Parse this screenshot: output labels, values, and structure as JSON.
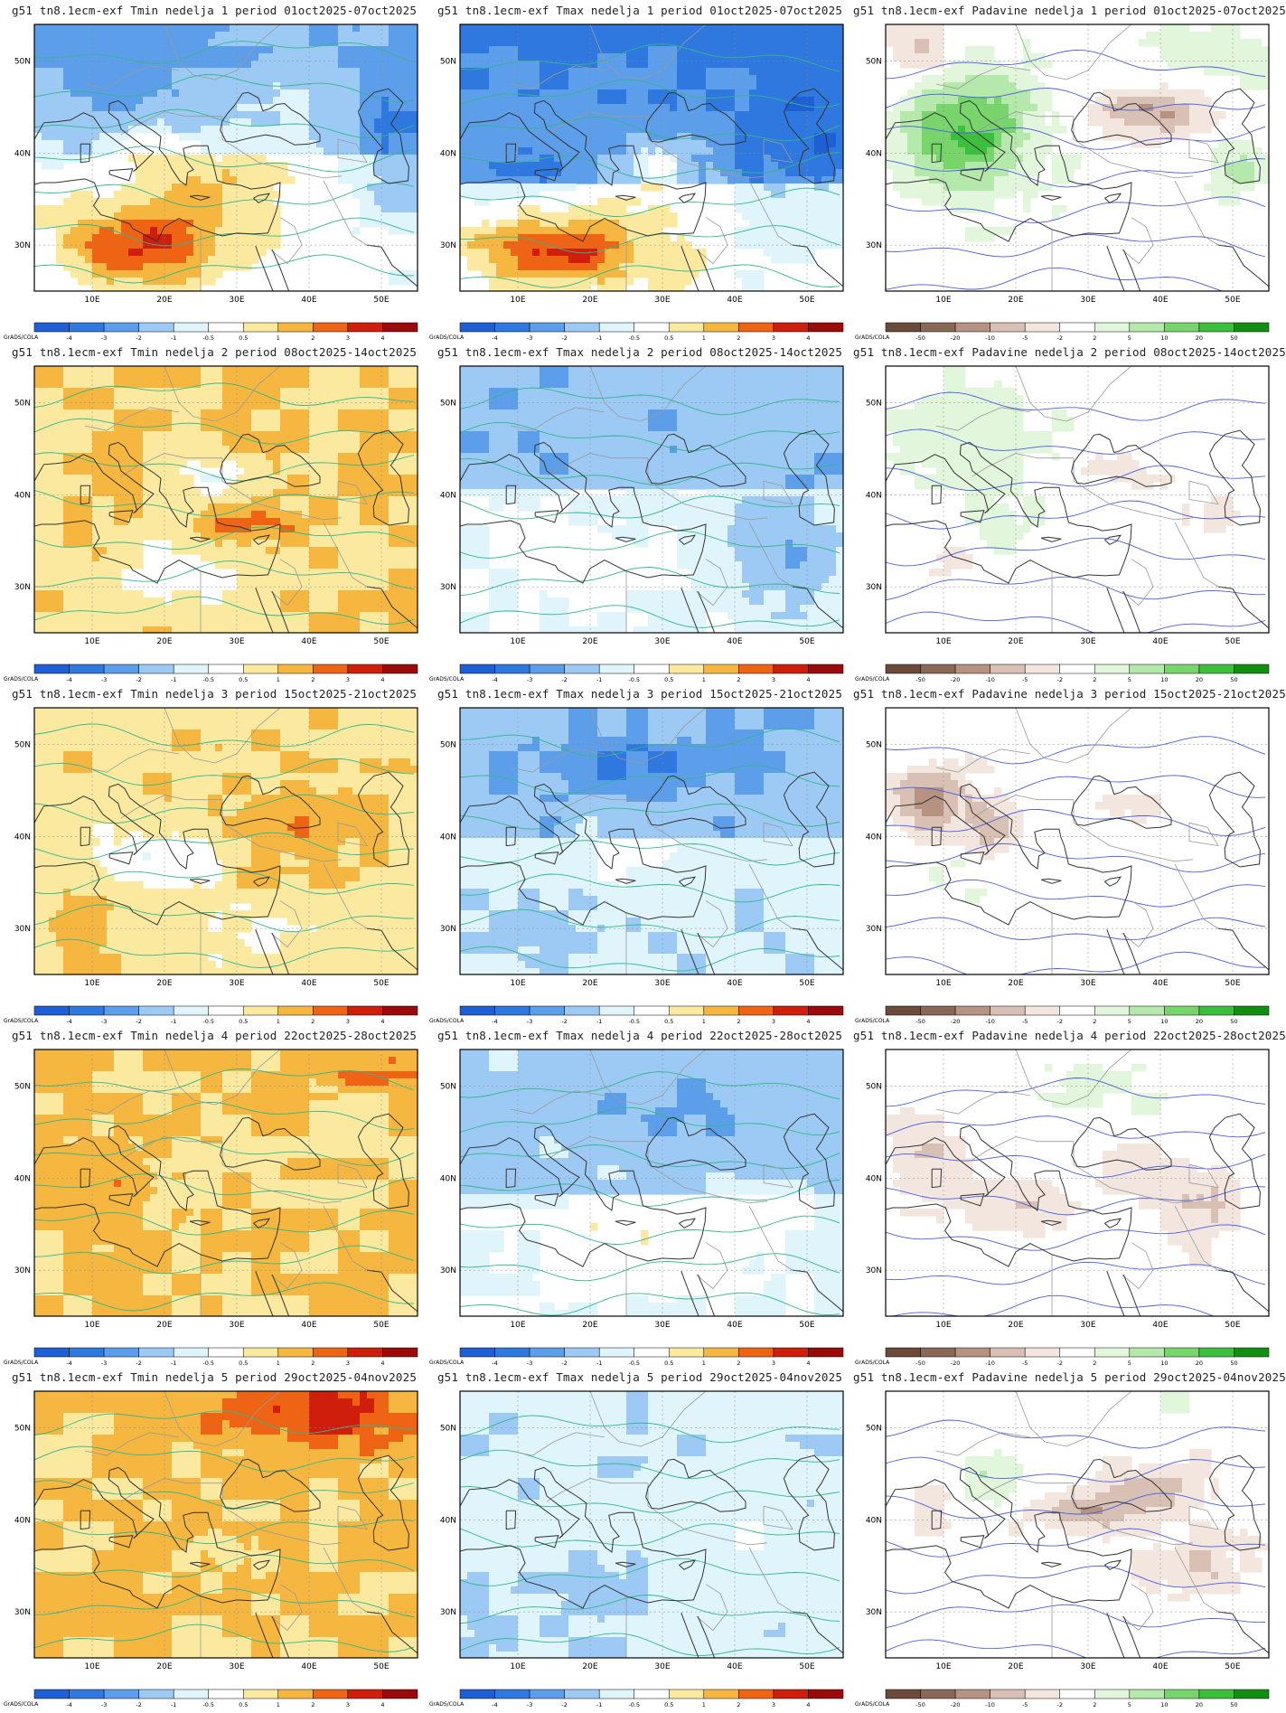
{
  "source_label": "GrADS/COLA",
  "axis": {
    "lon_ticks": [
      "10E",
      "20E",
      "30E",
      "40E",
      "50E"
    ],
    "lat_ticks": [
      "50N",
      "40N",
      "30N"
    ]
  },
  "legends": {
    "temp": [
      "-4",
      "-3",
      "-2",
      "-1",
      "-0.5",
      "0.5",
      "1",
      "2",
      "3",
      "4"
    ],
    "precip": [
      "-50",
      "-20",
      "-10",
      "-5",
      "-2",
      "2",
      "5",
      "10",
      "20",
      "50"
    ]
  },
  "colors": {
    "temp": [
      "#1e5fd6",
      "#2f78e0",
      "#5c9eea",
      "#9ccaf5",
      "#dff4fb",
      "#ffffff",
      "#fbe9a0",
      "#f5b740",
      "#ee6414",
      "#d01e0c",
      "#9a0a0a"
    ],
    "precip": [
      "#6b4a3a",
      "#8a6858",
      "#b59282",
      "#d8c0b4",
      "#f2e6df",
      "#ffffff",
      "#e2f6dc",
      "#b5e8ab",
      "#78d56c",
      "#3cbf3c",
      "#128f12"
    ]
  },
  "panels": [
    {
      "title": "g51 tn8.1ecm-exf Tmin nedelja 1 period 01oct2025-07oct2025",
      "kind": "temp",
      "pattern": "t1min"
    },
    {
      "title": "g51 tn8.1ecm-exf Tmax nedelja 1 period 01oct2025-07oct2025",
      "kind": "temp",
      "pattern": "t1max"
    },
    {
      "title": "g51 tn8.1ecm-exf Padavine nedelja 1 period 01oct2025-07oct2025",
      "kind": "precip",
      "pattern": "p1"
    },
    {
      "title": "g51 tn8.1ecm-exf Tmin nedelja 2 period 08oct2025-14oct2025",
      "kind": "temp",
      "pattern": "t2min"
    },
    {
      "title": "g51 tn8.1ecm-exf Tmax nedelja 2 period 08oct2025-14oct2025",
      "kind": "temp",
      "pattern": "t2max"
    },
    {
      "title": "g51 tn8.1ecm-exf Padavine nedelja 2 period 08oct2025-14oct2025",
      "kind": "precip",
      "pattern": "p2"
    },
    {
      "title": "g51 tn8.1ecm-exf Tmin nedelja 3 period 15oct2025-21oct2025",
      "kind": "temp",
      "pattern": "t3min"
    },
    {
      "title": "g51 tn8.1ecm-exf Tmax nedelja 3 period 15oct2025-21oct2025",
      "kind": "temp",
      "pattern": "t3max"
    },
    {
      "title": "g51 tn8.1ecm-exf Padavine nedelja 3 period 15oct2025-21oct2025",
      "kind": "precip",
      "pattern": "p3"
    },
    {
      "title": "g51 tn8.1ecm-exf Tmin nedelja 4 period 22oct2025-28oct2025",
      "kind": "temp",
      "pattern": "t4min"
    },
    {
      "title": "g51 tn8.1ecm-exf Tmax nedelja 4 period 22oct2025-28oct2025",
      "kind": "temp",
      "pattern": "t4max"
    },
    {
      "title": "g51 tn8.1ecm-exf Padavine nedelja 4 period 22oct2025-28oct2025",
      "kind": "precip",
      "pattern": "p4"
    },
    {
      "title": "g51 tn8.1ecm-exf Tmin nedelja 5 period 29oct2025-04nov2025",
      "kind": "temp",
      "pattern": "t5min"
    },
    {
      "title": "g51 tn8.1ecm-exf Tmax nedelja 5 period 29oct2025-04nov2025",
      "kind": "temp",
      "pattern": "t5max"
    },
    {
      "title": "g51 tn8.1ecm-exf Padavine nedelja 5 period 29oct2025-04nov2025",
      "kind": "precip",
      "pattern": "p5"
    }
  ]
}
